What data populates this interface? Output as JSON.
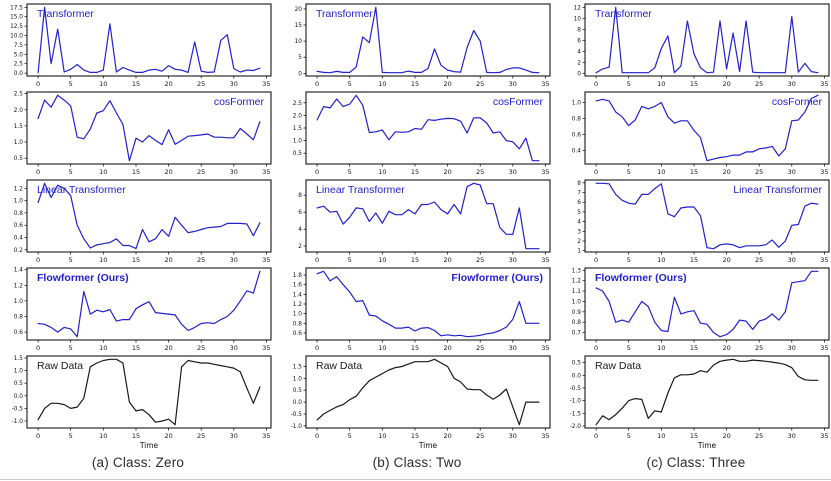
{
  "figure": {
    "title_semantic": "Attention model comparison on per-class time series",
    "captions": [
      {
        "label": "(a) Class: Zero"
      },
      {
        "label": "(b) Class: Two"
      },
      {
        "label": "(c) Class: Three"
      }
    ],
    "colors": {
      "series_blue": "#2121cd",
      "series_black": "#1a1a1a",
      "axis": "#000000"
    }
  },
  "chart_common": {
    "xlim": [
      -1.7,
      35.7
    ],
    "xticks": [
      0,
      5,
      10,
      15,
      20,
      25,
      30,
      35
    ],
    "grid": false,
    "legend_position": "none"
  },
  "chart_data": [
    {
      "type": "line",
      "title": "Transformer",
      "column": "a",
      "row": 1,
      "label_pos": "tl",
      "bold": false,
      "line_color": "#2121cd",
      "xlabel": "",
      "ylim": [
        -0.77,
        18.37
      ],
      "ytick_vals": [
        0.0,
        2.5,
        5.0,
        7.5,
        10.0,
        12.5,
        15.0,
        17.5
      ],
      "ytick_labels": [
        "0.0",
        "2.5",
        "5.0",
        "7.5",
        "10.0",
        "12.5",
        "15.0",
        "17.5"
      ],
      "x_range": [
        0,
        34
      ],
      "values": [
        0.1,
        17.5,
        2.5,
        11.7,
        0.3,
        1.0,
        2.3,
        0.8,
        0.2,
        0.2,
        0.8,
        13.1,
        0.3,
        1.5,
        0.8,
        0.2,
        0.2,
        0.8,
        1.0,
        0.5,
        2.0,
        1.0,
        0.8,
        0.2,
        8.3,
        0.5,
        0.2,
        0.3,
        8.7,
        10.2,
        1.2,
        0.3,
        0.8,
        0.7,
        1.3
      ]
    },
    {
      "type": "line",
      "title": "cosFormer",
      "column": "a",
      "row": 2,
      "label_pos": "tr",
      "bold": false,
      "line_color": "#2121cd",
      "xlabel": "",
      "ylim": [
        0.32,
        2.55
      ],
      "ytick_vals": [
        0.5,
        1.0,
        1.5,
        2.0,
        2.5
      ],
      "ytick_labels": [
        "0.5",
        "1.0",
        "1.5",
        "2.0",
        "2.5"
      ],
      "x_range": [
        0,
        34
      ],
      "values": [
        1.73,
        2.3,
        2.08,
        2.45,
        2.3,
        2.12,
        1.15,
        1.1,
        1.4,
        1.9,
        1.97,
        2.28,
        1.9,
        1.55,
        0.42,
        1.12,
        1.0,
        1.2,
        1.05,
        0.92,
        1.38,
        0.93,
        1.05,
        1.18,
        1.2,
        1.22,
        1.25,
        1.15,
        1.15,
        1.13,
        1.13,
        1.42,
        1.25,
        1.07,
        1.63
      ]
    },
    {
      "type": "line",
      "title": "Linear Transformer",
      "column": "a",
      "row": 3,
      "label_pos": "tl",
      "bold": false,
      "line_color": "#2121cd",
      "xlabel": "",
      "ylim": [
        0.165,
        1.335
      ],
      "ytick_vals": [
        0.2,
        0.4,
        0.6,
        0.8,
        1.0,
        1.2
      ],
      "ytick_labels": [
        "0.2",
        "0.4",
        "0.6",
        "0.8",
        "1.0",
        "1.2"
      ],
      "x_range": [
        0,
        34
      ],
      "values": [
        0.97,
        1.28,
        1.05,
        1.25,
        1.2,
        1.08,
        0.6,
        0.38,
        0.23,
        0.28,
        0.3,
        0.32,
        0.38,
        0.27,
        0.27,
        0.22,
        0.53,
        0.33,
        0.38,
        0.53,
        0.42,
        0.73,
        0.6,
        0.48,
        0.5,
        0.53,
        0.56,
        0.57,
        0.58,
        0.63,
        0.63,
        0.63,
        0.62,
        0.43,
        0.64
      ]
    },
    {
      "type": "line",
      "title": "Flowformer (Ours)",
      "column": "a",
      "row": 4,
      "label_pos": "tl",
      "bold": true,
      "line_color": "#2121cd",
      "xlabel": "",
      "ylim": [
        0.498,
        1.422
      ],
      "ytick_vals": [
        0.6,
        0.8,
        1.0,
        1.2,
        1.4
      ],
      "ytick_labels": [
        "0.6",
        "0.8",
        "1.0",
        "1.2",
        "1.4"
      ],
      "x_range": [
        0,
        34
      ],
      "values": [
        0.71,
        0.7,
        0.66,
        0.6,
        0.66,
        0.64,
        0.54,
        1.12,
        0.83,
        0.88,
        0.86,
        0.89,
        0.74,
        0.76,
        0.76,
        0.9,
        0.95,
        0.99,
        0.85,
        0.84,
        0.83,
        0.82,
        0.7,
        0.62,
        0.66,
        0.71,
        0.72,
        0.71,
        0.76,
        0.8,
        0.88,
        1.0,
        1.13,
        1.1,
        1.38
      ]
    },
    {
      "type": "line",
      "title": "Raw Data",
      "column": "a",
      "row": 5,
      "label_pos": "tl",
      "bold": false,
      "line_color": "#1a1a1a",
      "xlabel": "Time",
      "ylim": [
        -1.28,
        1.58
      ],
      "ytick_vals": [
        -1.0,
        -0.5,
        0.0,
        0.5,
        1.0,
        1.5
      ],
      "ytick_labels": [
        "-1.0",
        "-0.5",
        "0.0",
        "0.5",
        "1.0",
        "1.5"
      ],
      "x_range": [
        0,
        34
      ],
      "values": [
        -0.95,
        -0.5,
        -0.3,
        -0.3,
        -0.35,
        -0.5,
        -0.45,
        -0.1,
        1.15,
        1.3,
        1.4,
        1.45,
        1.45,
        1.3,
        -0.25,
        -0.6,
        -0.55,
        -0.75,
        -1.05,
        -1.0,
        -0.93,
        -1.15,
        1.15,
        1.4,
        1.35,
        1.3,
        1.3,
        1.25,
        1.2,
        1.15,
        1.1,
        0.95,
        0.3,
        -0.3,
        0.35
      ]
    },
    {
      "type": "line",
      "title": "Transformer",
      "column": "b",
      "row": 1,
      "label_pos": "tl",
      "bold": false,
      "line_color": "#2121cd",
      "xlabel": "",
      "ylim": [
        -0.82,
        21.52
      ],
      "ytick_vals": [
        0,
        5,
        10,
        15,
        20
      ],
      "ytick_labels": [
        "0",
        "5",
        "10",
        "15",
        "20"
      ],
      "x_range": [
        0,
        34
      ],
      "values": [
        0.6,
        0.3,
        0.2,
        0.6,
        0.3,
        0.3,
        2.0,
        11.3,
        9.5,
        20.5,
        0.3,
        0.2,
        0.2,
        0.2,
        0.7,
        0.3,
        0.3,
        1.5,
        7.6,
        2.5,
        1.0,
        0.5,
        0.4,
        8.0,
        13.3,
        10.0,
        0.3,
        0.2,
        0.3,
        1.2,
        1.7,
        1.7,
        1.0,
        0.3,
        0.2
      ]
    },
    {
      "type": "line",
      "title": "cosFormer",
      "column": "b",
      "row": 2,
      "label_pos": "tr",
      "bold": false,
      "line_color": "#2121cd",
      "xlabel": "",
      "ylim": [
        0.07,
        2.93
      ],
      "ytick_vals": [
        0.5,
        1.0,
        1.5,
        2.0,
        2.5
      ],
      "ytick_labels": [
        "0.5",
        "1.0",
        "1.5",
        "2.0",
        "2.5"
      ],
      "x_range": [
        0,
        34
      ],
      "values": [
        1.82,
        2.35,
        2.3,
        2.65,
        2.35,
        2.45,
        2.8,
        2.4,
        1.32,
        1.35,
        1.42,
        1.03,
        1.35,
        1.33,
        1.35,
        1.48,
        1.45,
        1.83,
        1.8,
        1.85,
        1.88,
        1.87,
        1.77,
        1.3,
        1.9,
        1.9,
        1.7,
        1.3,
        1.35,
        1.0,
        0.95,
        0.67,
        1.1,
        0.2,
        0.2
      ]
    },
    {
      "type": "line",
      "title": "Linear Transformer",
      "column": "b",
      "row": 3,
      "label_pos": "tl",
      "bold": false,
      "line_color": "#2121cd",
      "xlabel": "",
      "ylim": [
        1.31,
        9.79
      ],
      "ytick_vals": [
        2,
        4,
        6,
        8
      ],
      "ytick_labels": [
        "2",
        "4",
        "6",
        "8"
      ],
      "x_range": [
        0,
        34
      ],
      "values": [
        6.5,
        6.7,
        6.0,
        6.1,
        4.6,
        5.4,
        6.5,
        6.4,
        4.9,
        5.9,
        4.7,
        6.1,
        5.7,
        5.7,
        6.3,
        5.8,
        6.9,
        6.9,
        7.2,
        6.3,
        5.8,
        6.9,
        5.8,
        9.0,
        9.4,
        9.2,
        7.0,
        7.0,
        4.2,
        3.4,
        3.4,
        6.5,
        1.7,
        1.7,
        1.7
      ]
    },
    {
      "type": "line",
      "title": "Flowformer (Ours)",
      "column": "b",
      "row": 4,
      "label_pos": "tr",
      "bold": true,
      "line_color": "#2121cd",
      "xlabel": "",
      "ylim": [
        0.452,
        1.948
      ],
      "ytick_vals": [
        0.6,
        0.8,
        1.0,
        1.2,
        1.4,
        1.6,
        1.8
      ],
      "ytick_labels": [
        "0.6",
        "0.8",
        "1.0",
        "1.2",
        "1.4",
        "1.6",
        "1.8"
      ],
      "x_range": [
        0,
        34
      ],
      "values": [
        1.83,
        1.88,
        1.68,
        1.77,
        1.6,
        1.45,
        1.25,
        1.27,
        0.97,
        0.95,
        0.85,
        0.78,
        0.7,
        0.7,
        0.72,
        0.64,
        0.7,
        0.71,
        0.65,
        0.54,
        0.56,
        0.54,
        0.55,
        0.52,
        0.53,
        0.55,
        0.58,
        0.6,
        0.65,
        0.72,
        0.88,
        1.25,
        0.8,
        0.8,
        0.8
      ]
    },
    {
      "type": "line",
      "title": "Raw Data",
      "column": "b",
      "row": 5,
      "label_pos": "tl",
      "bold": false,
      "line_color": "#1a1a1a",
      "xlabel": "Time",
      "ylim": [
        -1.09,
        1.94
      ],
      "ytick_vals": [
        -1.0,
        -0.5,
        0.0,
        0.5,
        1.0,
        1.5
      ],
      "ytick_labels": [
        "-1.0",
        "-0.5",
        "0.0",
        "0.5",
        "1.0",
        "1.5"
      ],
      "x_range": [
        0,
        34
      ],
      "values": [
        -0.75,
        -0.5,
        -0.35,
        -0.2,
        -0.1,
        0.1,
        0.25,
        0.6,
        0.9,
        1.05,
        1.2,
        1.35,
        1.45,
        1.5,
        1.6,
        1.7,
        1.7,
        1.7,
        1.8,
        1.65,
        1.5,
        1.0,
        0.85,
        0.55,
        0.52,
        0.52,
        0.3,
        0.12,
        0.3,
        0.55,
        -0.2,
        -0.95,
        0.0,
        0.0,
        0.0
      ]
    },
    {
      "type": "line",
      "title": "Transformer",
      "column": "c",
      "row": 1,
      "label_pos": "tl",
      "bold": false,
      "line_color": "#2121cd",
      "xlabel": "",
      "ylim": [
        -0.5,
        12.6
      ],
      "ytick_vals": [
        0,
        2,
        4,
        6,
        8,
        10,
        12
      ],
      "ytick_labels": [
        "0",
        "2",
        "4",
        "6",
        "8",
        "10",
        "12"
      ],
      "x_range": [
        0,
        34
      ],
      "values": [
        0.1,
        0.8,
        1.1,
        12.0,
        0.1,
        0.1,
        0.1,
        0.1,
        0.1,
        1.0,
        4.5,
        6.8,
        0.1,
        1.3,
        9.5,
        3.5,
        1.0,
        0.1,
        0.2,
        9.5,
        0.8,
        7.3,
        0.3,
        9.5,
        0.2,
        0.1,
        0.1,
        0.1,
        0.1,
        0.1,
        10.3,
        0.2,
        1.8,
        0.3,
        0.1
      ]
    },
    {
      "type": "line",
      "title": "cosFormer",
      "column": "c",
      "row": 2,
      "label_pos": "tr",
      "bold": false,
      "line_color": "#2121cd",
      "xlabel": "",
      "ylim": [
        0.229,
        1.131
      ],
      "ytick_vals": [
        0.4,
        0.6,
        0.8,
        1.0
      ],
      "ytick_labels": [
        "0.4",
        "0.6",
        "0.8",
        "1.0"
      ],
      "x_range": [
        0,
        34
      ],
      "values": [
        1.02,
        1.04,
        1.02,
        0.88,
        0.82,
        0.71,
        0.78,
        0.95,
        0.92,
        0.95,
        1.0,
        0.82,
        0.74,
        0.77,
        0.77,
        0.65,
        0.56,
        0.27,
        0.29,
        0.31,
        0.32,
        0.34,
        0.34,
        0.38,
        0.38,
        0.42,
        0.43,
        0.45,
        0.33,
        0.42,
        0.77,
        0.78,
        0.88,
        1.05,
        1.09
      ]
    },
    {
      "type": "line",
      "title": "Linear Transformer",
      "column": "c",
      "row": 3,
      "label_pos": "tr",
      "bold": false,
      "line_color": "#2121cd",
      "xlabel": "",
      "ylim": [
        0.86,
        8.29
      ],
      "ytick_vals": [
        1,
        2,
        3,
        4,
        5,
        6,
        7,
        8
      ],
      "ytick_labels": [
        "1",
        "2",
        "3",
        "4",
        "5",
        "6",
        "7",
        "8"
      ],
      "x_range": [
        0,
        34
      ],
      "values": [
        7.95,
        7.95,
        7.9,
        6.8,
        6.2,
        5.9,
        5.8,
        6.8,
        6.8,
        7.4,
        7.9,
        4.8,
        4.5,
        5.4,
        5.5,
        5.5,
        4.6,
        1.3,
        1.2,
        1.6,
        1.7,
        1.6,
        1.3,
        1.5,
        1.5,
        1.5,
        1.6,
        2.1,
        1.35,
        2.0,
        3.6,
        3.7,
        5.6,
        5.9,
        5.8
      ]
    },
    {
      "type": "line",
      "title": "Flowformer (Ours)",
      "column": "c",
      "row": 4,
      "label_pos": "tl",
      "bold": true,
      "line_color": "#2121cd",
      "xlabel": "",
      "ylim": [
        0.628,
        1.322
      ],
      "ytick_vals": [
        0.7,
        0.8,
        0.9,
        1.0,
        1.1,
        1.2,
        1.3
      ],
      "ytick_labels": [
        "0.7",
        "0.8",
        "0.9",
        "1.0",
        "1.1",
        "1.2",
        "1.3"
      ],
      "x_range": [
        0,
        34
      ],
      "values": [
        1.13,
        1.1,
        1.0,
        0.8,
        0.82,
        0.8,
        0.9,
        1.0,
        0.95,
        0.8,
        0.72,
        0.71,
        1.04,
        0.88,
        0.9,
        0.91,
        0.79,
        0.78,
        0.7,
        0.66,
        0.68,
        0.73,
        0.82,
        0.81,
        0.73,
        0.81,
        0.83,
        0.88,
        0.82,
        0.9,
        1.18,
        1.19,
        1.2,
        1.29,
        1.29
      ]
    },
    {
      "type": "line",
      "title": "Raw Data",
      "column": "c",
      "row": 5,
      "label_pos": "tl",
      "bold": false,
      "line_color": "#1a1a1a",
      "xlabel": "Time",
      "ylim": [
        -2.08,
        0.76
      ],
      "ytick_vals": [
        -2.0,
        -1.5,
        -1.0,
        -0.5,
        0.0,
        0.5
      ],
      "ytick_labels": [
        "-2.0",
        "-1.5",
        "-1.0",
        "-0.5",
        "0.0",
        "0.5"
      ],
      "x_range": [
        0,
        34
      ],
      "values": [
        -1.95,
        -1.6,
        -1.75,
        -1.55,
        -1.3,
        -1.0,
        -0.92,
        -0.95,
        -1.7,
        -1.4,
        -1.45,
        -0.7,
        -0.1,
        0.02,
        0.02,
        0.05,
        0.18,
        0.12,
        0.4,
        0.55,
        0.6,
        0.63,
        0.55,
        0.55,
        0.6,
        0.58,
        0.55,
        0.52,
        0.48,
        0.42,
        0.3,
        -0.05,
        -0.18,
        -0.2,
        -0.2
      ]
    }
  ]
}
